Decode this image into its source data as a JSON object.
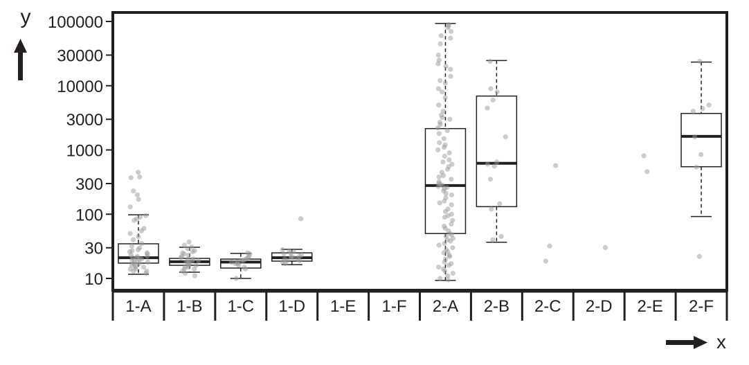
{
  "chart_data": {
    "type": "box",
    "xlabel": "x",
    "ylabel": "y",
    "yscale": "log",
    "ylim": [
      7,
      150000
    ],
    "yticks": [
      10,
      30,
      100,
      300,
      1000,
      3000,
      10000,
      30000,
      100000
    ],
    "ytick_labels": [
      "10",
      "30",
      "100",
      "300",
      "1000",
      "3000",
      "10000",
      "30000",
      "100000"
    ],
    "categories": [
      "1-A",
      "1-B",
      "1-C",
      "1-D",
      "1-E",
      "1-F",
      "2-A",
      "2-B",
      "2-C",
      "2-D",
      "2-E",
      "2-F"
    ],
    "grid": false,
    "colors": {
      "axis": "#231f20",
      "points": "#9a9a9a"
    },
    "boxes": {
      "1-A": {
        "whisker_low": 11.6,
        "q1": 17.3,
        "median": 21,
        "q3": 34.6,
        "whisker_high": 98
      },
      "1-B": {
        "whisker_low": 12.5,
        "q1": 16,
        "median": 18.2,
        "q3": 20.5,
        "whisker_high": 30.6
      },
      "1-C": {
        "whisker_low": 10,
        "q1": 14.5,
        "median": 18,
        "q3": 20,
        "whisker_high": 24.5
      },
      "1-D": {
        "whisker_low": 16.4,
        "q1": 18.6,
        "median": 21,
        "q3": 25,
        "whisker_high": 28.4
      },
      "2-A": {
        "whisker_low": 9.3,
        "q1": 50,
        "median": 279,
        "q3": 2150,
        "whisker_high": 93000
      },
      "2-B": {
        "whisker_low": 36.6,
        "q1": 131,
        "median": 621,
        "q3": 6900,
        "whisker_high": 24700
      },
      "2-F": {
        "whisker_low": 92,
        "q1": 548,
        "median": 1630,
        "q3": 3700,
        "whisker_high": 23300
      }
    },
    "points": {
      "1-A": [
        450,
        380,
        370,
        230,
        200,
        170,
        130,
        95,
        90,
        85,
        80,
        60,
        55,
        50,
        45,
        40,
        35,
        32,
        30,
        28,
        27,
        26,
        25,
        24,
        23,
        22,
        22,
        21,
        21,
        20,
        20,
        19,
        19,
        18,
        18,
        17,
        17,
        16,
        16,
        15,
        15,
        14,
        14,
        13,
        13,
        12
      ],
      "1-B": [
        37,
        33,
        31,
        29,
        27,
        26,
        25,
        24,
        23,
        22,
        21,
        20,
        20,
        19,
        19,
        18,
        18,
        17,
        17,
        16,
        16,
        15,
        15,
        14,
        14,
        13,
        12,
        11
      ],
      "1-C": [
        25,
        24,
        22,
        21,
        20,
        19,
        19,
        18,
        18,
        17,
        17,
        16,
        15,
        14,
        10
      ],
      "1-D": [
        85,
        28,
        27,
        26,
        25,
        24,
        23,
        22,
        22,
        21,
        21,
        20,
        20,
        19,
        19,
        18,
        17
      ],
      "2-A": [
        90000,
        85000,
        80000,
        70000,
        60000,
        55000,
        45000,
        30000,
        25000,
        22000,
        20000,
        18000,
        14000,
        12000,
        11000,
        9000,
        8000,
        6500,
        5000,
        4000,
        3500,
        3200,
        3000,
        2700,
        2500,
        2200,
        2000,
        1800,
        1500,
        1300,
        1200,
        1100,
        1000,
        900,
        800,
        700,
        650,
        600,
        550,
        500,
        450,
        400,
        380,
        350,
        320,
        300,
        290,
        280,
        270,
        260,
        250,
        230,
        210,
        200,
        180,
        160,
        150,
        140,
        120,
        110,
        100,
        95,
        90,
        80,
        70,
        65,
        60,
        55,
        50,
        48,
        45,
        42,
        40,
        38,
        35,
        33,
        30,
        28,
        26,
        25,
        23,
        22,
        20,
        18,
        17,
        16,
        15,
        14,
        13,
        12,
        11,
        10,
        9.5
      ],
      "2-B": [
        24000,
        9000,
        8000,
        6000,
        4500,
        1600,
        650,
        600,
        560,
        350,
        145,
        120,
        45,
        40
      ],
      "2-C": [
        571,
        32,
        18.6
      ],
      "2-D": [
        30.3
      ],
      "2-E": [
        810,
        460
      ],
      "2-F": [
        24000,
        5000,
        4400,
        4000,
        1600,
        850,
        540,
        22
      ]
    }
  }
}
